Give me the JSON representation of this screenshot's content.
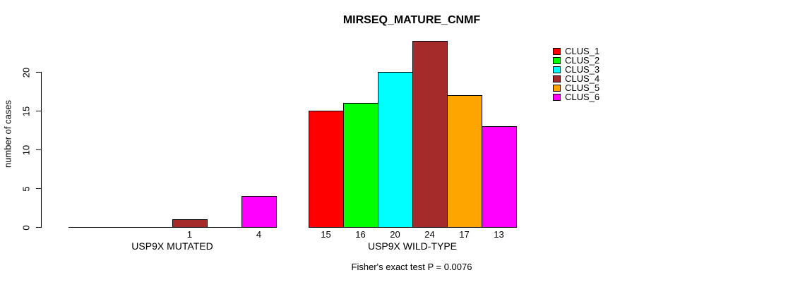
{
  "chart_data": {
    "type": "bar",
    "title": "MIRSEQ_MATURE_CNMF",
    "ylabel": "number of cases",
    "xlabel": "",
    "annotation": "Fisher's exact test P = 0.0076",
    "yticks": [
      0,
      5,
      10,
      15,
      20
    ],
    "ylim": [
      0,
      24
    ],
    "grid": false,
    "legend_position": "right",
    "categories": [
      "CLUS_1",
      "CLUS_2",
      "CLUS_3",
      "CLUS_4",
      "CLUS_5",
      "CLUS_6"
    ],
    "colors": [
      "#FF0000",
      "#00FF00",
      "#00FFFF",
      "#A52A2A",
      "#FFA500",
      "#FF00FF"
    ],
    "groups": [
      {
        "label": "USP9X MUTATED",
        "values": [
          0,
          0,
          0,
          1,
          0,
          4
        ]
      },
      {
        "label": "USP9X WILD-TYPE",
        "values": [
          15,
          16,
          20,
          24,
          17,
          13
        ]
      }
    ],
    "bar_value_labels": {
      "USP9X MUTATED": [
        "",
        "",
        "",
        "1",
        "",
        "4"
      ],
      "USP9X WILD-TYPE": [
        "15",
        "16",
        "20",
        "24",
        "17",
        "13"
      ]
    }
  }
}
